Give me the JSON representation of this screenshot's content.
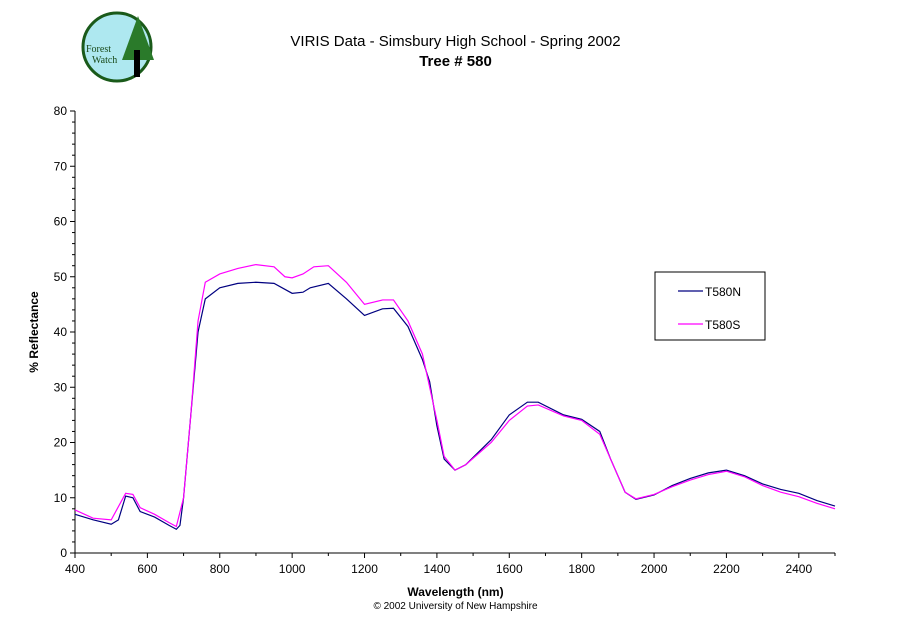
{
  "logo": {
    "text": "Forest Watch"
  },
  "chart_data": {
    "type": "line",
    "title": "VIRIS Data - Simsbury High School - Spring 2002",
    "subtitle": "Tree # 580",
    "xlabel": "Wavelength (nm)",
    "ylabel": "% Reflectance",
    "xlim": [
      400,
      2500
    ],
    "ylim": [
      0,
      80
    ],
    "xticks": [
      400,
      600,
      800,
      1000,
      1200,
      1400,
      1600,
      1800,
      2000,
      2200,
      2400
    ],
    "yticks": [
      0,
      10,
      20,
      30,
      40,
      50,
      60,
      70,
      80
    ],
    "grid": false,
    "legend": "right",
    "series": [
      {
        "name": "T580N",
        "color": "#000080",
        "x": [
          400,
          450,
          500,
          520,
          540,
          560,
          580,
          620,
          660,
          680,
          690,
          700,
          720,
          740,
          760,
          800,
          850,
          900,
          950,
          1000,
          1030,
          1050,
          1100,
          1150,
          1200,
          1250,
          1280,
          1320,
          1360,
          1380,
          1400,
          1420,
          1450,
          1480,
          1550,
          1600,
          1650,
          1680,
          1750,
          1800,
          1850,
          1880,
          1920,
          1950,
          2000,
          2050,
          2100,
          2150,
          2200,
          2250,
          2300,
          2350,
          2400,
          2450,
          2500
        ],
        "y": [
          7,
          6,
          5.2,
          6,
          10.3,
          10,
          7.5,
          6.5,
          5,
          4.3,
          5,
          10,
          25,
          40,
          46,
          48,
          48.8,
          49,
          48.8,
          47,
          47.2,
          48,
          48.8,
          46,
          43,
          44.2,
          44.3,
          41,
          35,
          31,
          23,
          17,
          15,
          16,
          20.5,
          25,
          27.3,
          27.3,
          25,
          24.2,
          22,
          17,
          11,
          9.7,
          10.5,
          12.2,
          13.5,
          14.5,
          15,
          14,
          12.5,
          11.5,
          10.8,
          9.5,
          8.5
        ]
      },
      {
        "name": "T580S",
        "color": "#FF00FF",
        "x": [
          400,
          450,
          500,
          540,
          560,
          580,
          620,
          660,
          680,
          700,
          720,
          740,
          760,
          800,
          850,
          900,
          950,
          980,
          1000,
          1030,
          1060,
          1100,
          1150,
          1200,
          1250,
          1280,
          1320,
          1360,
          1400,
          1420,
          1450,
          1480,
          1550,
          1600,
          1650,
          1680,
          1750,
          1800,
          1850,
          1880,
          1920,
          1950,
          2000,
          2050,
          2100,
          2150,
          2200,
          2250,
          2300,
          2350,
          2400,
          2450,
          2500
        ],
        "y": [
          7.8,
          6.3,
          6,
          10.8,
          10.6,
          8.2,
          7,
          5.5,
          4.8,
          10,
          25,
          42,
          49,
          50.5,
          51.5,
          52.2,
          51.8,
          50,
          49.8,
          50.5,
          51.8,
          52,
          49,
          45,
          45.8,
          45.8,
          42,
          36,
          24,
          17.5,
          15,
          16,
          20,
          24,
          26.6,
          26.8,
          24.8,
          24,
          21.5,
          17,
          11,
          9.8,
          10.6,
          12,
          13.2,
          14.2,
          14.8,
          13.8,
          12.2,
          11,
          10.2,
          9,
          8
        ]
      }
    ]
  },
  "footer": {
    "copyright": "© 2002 University of New Hampshire"
  }
}
